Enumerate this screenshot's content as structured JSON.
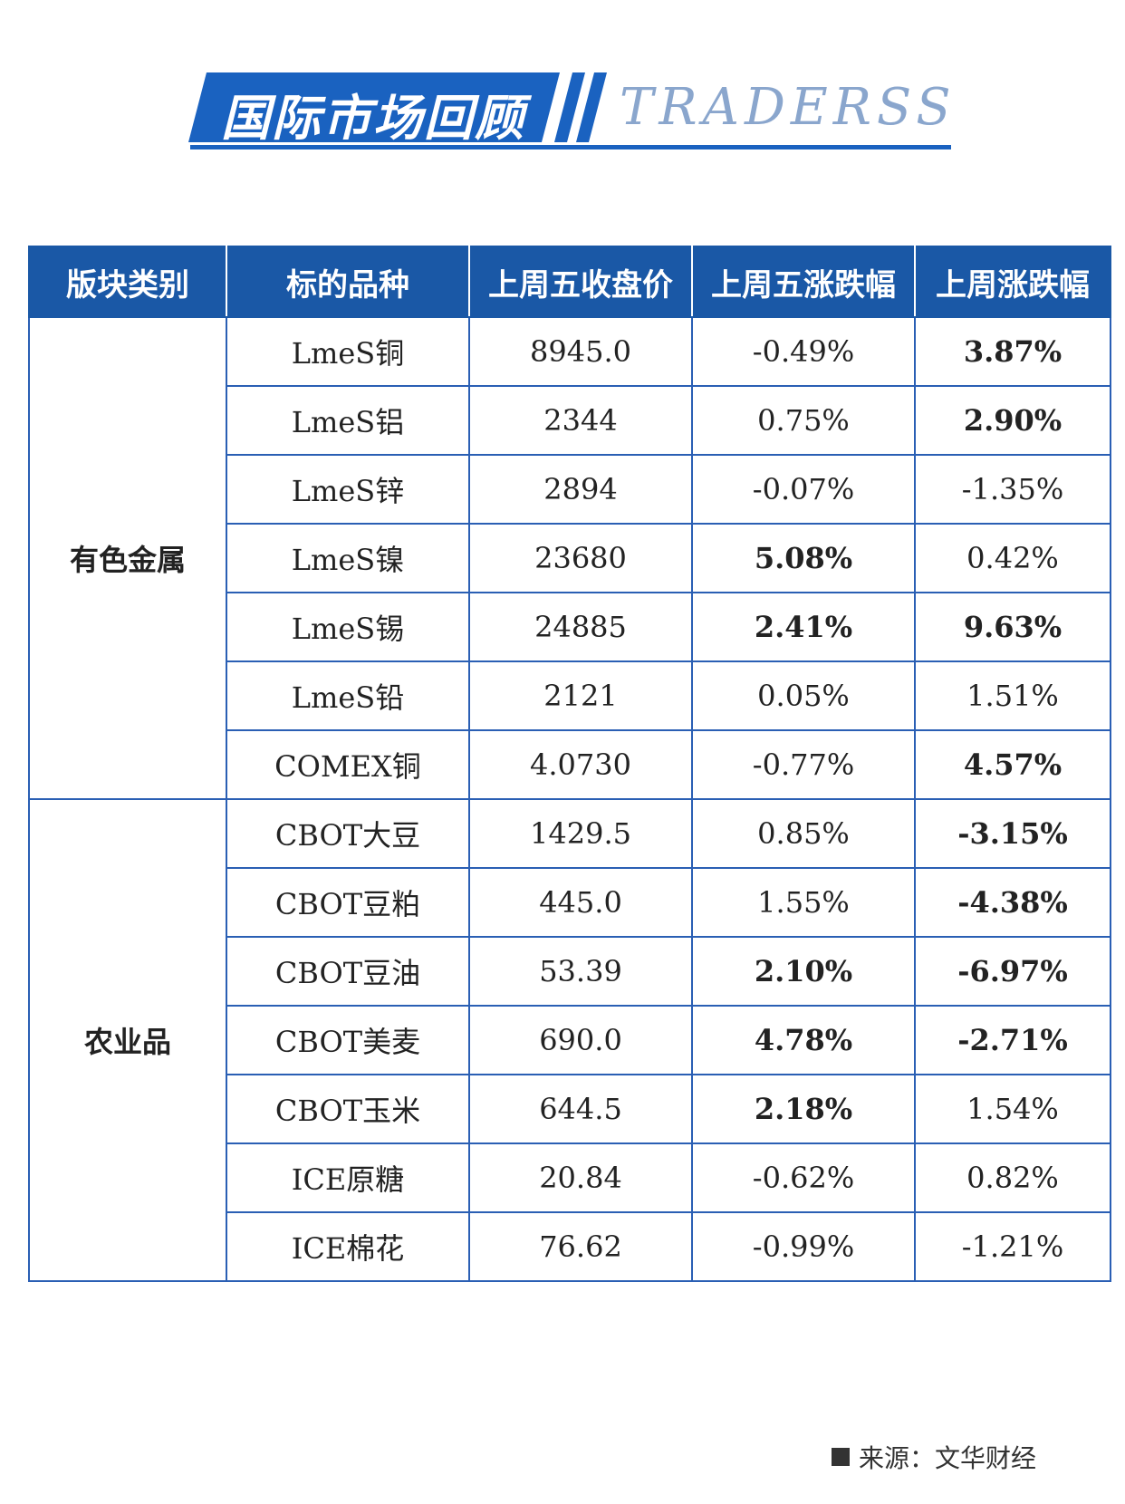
{
  "header": {
    "title_cn": "国际市场回顾",
    "title_en": "TRADERSS",
    "colors": {
      "primary": "#1a58a6",
      "accent_text": "#8aa6cd"
    }
  },
  "table": {
    "headers": [
      "版块类别",
      "标的品种",
      "上周五收盘价",
      "上周五涨跌幅",
      "上周涨跌幅"
    ],
    "groups": [
      {
        "category": "有色金属",
        "rows": [
          {
            "item": "LmeS铜",
            "close": "8945.0",
            "day": "-0.49%",
            "day_dir": "down",
            "day_bold": false,
            "week": "3.87%",
            "week_dir": "up",
            "week_bold": true
          },
          {
            "item": "LmeS铝",
            "close": "2344",
            "day": "0.75%",
            "day_dir": "up",
            "day_bold": false,
            "week": "2.90%",
            "week_dir": "up",
            "week_bold": true
          },
          {
            "item": "LmeS锌",
            "close": "2894",
            "day": "-0.07%",
            "day_dir": "down",
            "day_bold": false,
            "week": "-1.35%",
            "week_dir": "down",
            "week_bold": false
          },
          {
            "item": "LmeS镍",
            "close": "23680",
            "day": "5.08%",
            "day_dir": "up",
            "day_bold": true,
            "week": "0.42%",
            "week_dir": "up",
            "week_bold": false
          },
          {
            "item": "LmeS锡",
            "close": "24885",
            "day": "2.41%",
            "day_dir": "up",
            "day_bold": true,
            "week": "9.63%",
            "week_dir": "up",
            "week_bold": true
          },
          {
            "item": "LmeS铅",
            "close": "2121",
            "day": "0.05%",
            "day_dir": "up",
            "day_bold": false,
            "week": "1.51%",
            "week_dir": "up",
            "week_bold": false
          },
          {
            "item": "COMEX铜",
            "close": "4.0730",
            "day": "-0.77%",
            "day_dir": "down",
            "day_bold": false,
            "week": "4.57%",
            "week_dir": "up",
            "week_bold": true
          }
        ]
      },
      {
        "category": "农业品",
        "rows": [
          {
            "item": "CBOT大豆",
            "close": "1429.5",
            "day": "0.85%",
            "day_dir": "up",
            "day_bold": false,
            "week": "-3.15%",
            "week_dir": "down",
            "week_bold": true
          },
          {
            "item": "CBOT豆粕",
            "close": "445.0",
            "day": "1.55%",
            "day_dir": "up",
            "day_bold": false,
            "week": "-4.38%",
            "week_dir": "down",
            "week_bold": true
          },
          {
            "item": "CBOT豆油",
            "close": "53.39",
            "day": "2.10%",
            "day_dir": "up",
            "day_bold": true,
            "week": "-6.97%",
            "week_dir": "down",
            "week_bold": true
          },
          {
            "item": "CBOT美麦",
            "close": "690.0",
            "day": "4.78%",
            "day_dir": "up",
            "day_bold": true,
            "week": "-2.71%",
            "week_dir": "down",
            "week_bold": true
          },
          {
            "item": "CBOT玉米",
            "close": "644.5",
            "day": "2.18%",
            "day_dir": "up",
            "day_bold": true,
            "week": "1.54%",
            "week_dir": "up",
            "week_bold": false
          },
          {
            "item": "ICE原糖",
            "close": "20.84",
            "day": "-0.62%",
            "day_dir": "down",
            "day_bold": false,
            "week": "0.82%",
            "week_dir": "up",
            "week_bold": false
          },
          {
            "item": "ICE棉花",
            "close": "76.62",
            "day": "-0.99%",
            "day_dir": "down",
            "day_bold": false,
            "week": "-1.21%",
            "week_dir": "down",
            "week_bold": false
          }
        ]
      }
    ],
    "colors": {
      "up": "#e8182a",
      "down": "#17a34a",
      "border": "#2a5fb4"
    }
  },
  "footer": {
    "source": "来源：文华财经"
  }
}
